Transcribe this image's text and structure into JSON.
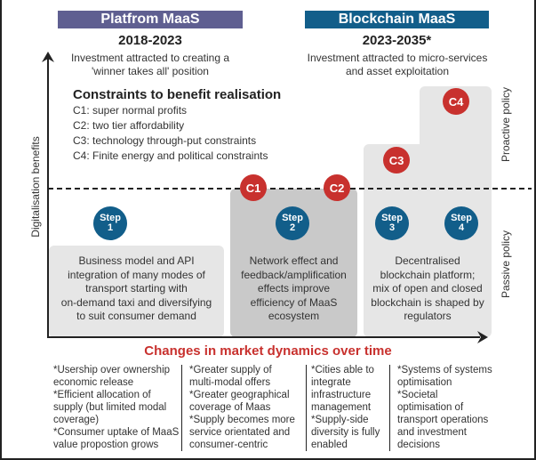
{
  "phases": [
    {
      "label": "Platfrom MaaS",
      "years": "2018-2023",
      "description_lines": [
        "Investment attracted to creating a",
        "'winner takes all' position"
      ],
      "color": "#5f5f91"
    },
    {
      "label": "Blockchain MaaS",
      "years": "2023-2035*",
      "description_lines": [
        "Investment attracted to micro-services",
        "and asset exploitation"
      ],
      "color": "#125e8a"
    }
  ],
  "constraints": {
    "title": "Constraints to benefit realisation",
    "items": [
      "C1: super normal profits",
      "C2: two tier affordability",
      "C3: technology through-put constraints",
      "C4: Finite energy and political constraints"
    ]
  },
  "constraint_markers": [
    "C1",
    "C2",
    "C3",
    "C4"
  ],
  "steps": [
    {
      "word": "Step",
      "number": "1"
    },
    {
      "word": "Step",
      "number": "2"
    },
    {
      "word": "Step",
      "number": "3"
    },
    {
      "word": "Step",
      "number": "4"
    }
  ],
  "boxes": [
    {
      "lines": [
        "Business model and API",
        "integration of many modes of",
        "transport starting with",
        "on-demand taxi and diversifying",
        "to suit consumer demand"
      ]
    },
    {
      "lines": [
        "Network effect and",
        "feedback/amplification",
        "effects improve",
        "efficiency of MaaS",
        "ecosystem"
      ]
    },
    {
      "lines": [
        "Decentralised",
        "blockchain platform;",
        "mix of open and closed",
        "blockchain is shaped by",
        "regulators"
      ]
    }
  ],
  "axes": {
    "y_label": "Digitalisation benefits",
    "x_label": "Changes in market dynamics over time",
    "upper_region_label": "Proactive policy",
    "lower_region_label": "Passive policy"
  },
  "bullet_columns": [
    {
      "lines": [
        "*Usership over ownership",
        "economic release",
        "*Efficient allocation of",
        "supply (but limited modal",
        "coverage)",
        "*Consumer uptake of MaaS",
        "value propostion grows"
      ]
    },
    {
      "lines": [
        "*Greater supply of",
        "multi-modal offers",
        "*Greater geographical",
        "coverage of Maas",
        "*Supply becomes more",
        "service orientated and",
        "consumer-centric"
      ]
    },
    {
      "lines": [
        "*Cities able to",
        "integrate",
        "infrastructure",
        "management",
        "*Supply-side",
        "diversity is fully",
        "enabled"
      ]
    },
    {
      "lines": [
        "*Systems of systems",
        "optimisation",
        "*Societal",
        "optimisation of",
        "transport operations",
        "and investment",
        "decisions"
      ]
    }
  ],
  "colors": {
    "constraint_red": "#c8312e",
    "step_blue": "#125e8a",
    "box_light": "#e6e6e6",
    "box_dark": "#c9c9c9"
  }
}
